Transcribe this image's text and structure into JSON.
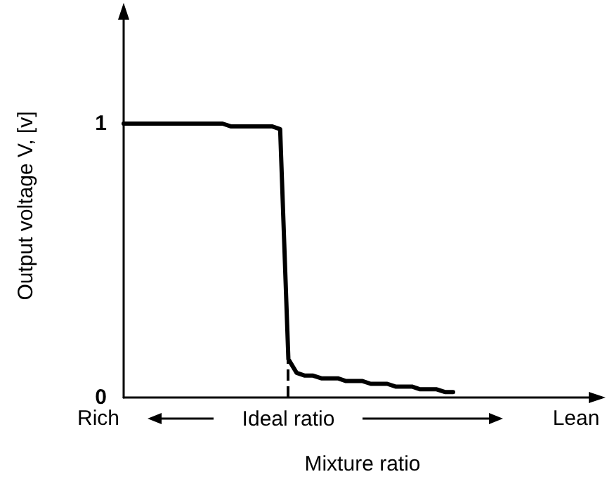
{
  "chart_data": {
    "type": "line",
    "xlabel": "Mixture ratio",
    "ylabel": "Output voltage V, [v]",
    "categories": [
      null,
      null,
      null,
      null,
      null,
      null,
      null,
      null,
      null,
      null,
      null,
      null,
      null,
      null,
      null,
      null,
      null,
      null,
      null,
      null,
      "Ideal ratio",
      null,
      null,
      null,
      null,
      null,
      null,
      null,
      null,
      null,
      null,
      null,
      null,
      null,
      null,
      null,
      null,
      null,
      null,
      null,
      null,
      null,
      null,
      null,
      null,
      null,
      null,
      null,
      null,
      null,
      null,
      null,
      null,
      null,
      null,
      null,
      null,
      null,
      null
    ],
    "series": [
      {
        "color": "#000000",
        "values": [
          1.0,
          1.0,
          1.0,
          1.0,
          1.0,
          1.0,
          1.0,
          1.0,
          1.0,
          1.0,
          1.0,
          1.0,
          1.0,
          0.99,
          0.99,
          0.99,
          0.99,
          0.99,
          0.99,
          0.98,
          0.14,
          0.09,
          0.08,
          0.08,
          0.07,
          0.07,
          0.07,
          0.06,
          0.06,
          0.06,
          0.05,
          0.05,
          0.05,
          0.04,
          0.04,
          0.04,
          0.03,
          0.03,
          0.03,
          0.02,
          0.02,
          null,
          null,
          null,
          null,
          null,
          null,
          null,
          null,
          null,
          null,
          null,
          null,
          null,
          null,
          null,
          null,
          null,
          null
        ]
      }
    ],
    "ylim": [
      0,
      1.4
    ],
    "yticks": [
      0,
      1
    ],
    "grid": false,
    "marker": "none",
    "line_style": "solid",
    "ref_lines": [
      {
        "axis": "x",
        "value": "Ideal ratio",
        "line_style": "dashed",
        "color": "#000000"
      }
    ],
    "annotations": [
      "Rich",
      "Lean"
    ]
  }
}
